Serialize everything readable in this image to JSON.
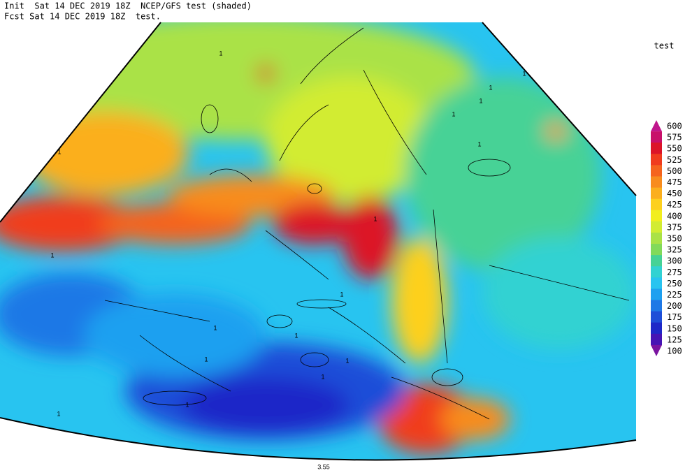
{
  "header": {
    "line1": "Init  Sat 14 DEC 2019 18Z  NCEP/GFS test (shaded)",
    "line2": "Fcst Sat 14 DEC 2019 18Z  test."
  },
  "legend": {
    "title": "test",
    "levels": [
      {
        "label": "600",
        "color": "#c0168c"
      },
      {
        "label": "575",
        "color": "#c8106a"
      },
      {
        "label": "550",
        "color": "#dc1428"
      },
      {
        "label": "525",
        "color": "#f03c1e"
      },
      {
        "label": "500",
        "color": "#f5641e"
      },
      {
        "label": "475",
        "color": "#f88c1e"
      },
      {
        "label": "450",
        "color": "#fbaf1e"
      },
      {
        "label": "425",
        "color": "#fdd01e"
      },
      {
        "label": "400",
        "color": "#f2ee1e"
      },
      {
        "label": "375",
        "color": "#d2ec32"
      },
      {
        "label": "350",
        "color": "#aae246"
      },
      {
        "label": "325",
        "color": "#82da5a"
      },
      {
        "label": "300",
        "color": "#46d296"
      },
      {
        "label": "275",
        "color": "#32d2d2"
      },
      {
        "label": "250",
        "color": "#28c4f0"
      },
      {
        "label": "225",
        "color": "#1ea0f0"
      },
      {
        "label": "200",
        "color": "#1e78e6"
      },
      {
        "label": "175",
        "color": "#1e4ed8"
      },
      {
        "label": "150",
        "color": "#1e28c8"
      },
      {
        "label": "125",
        "color": "#4614b4"
      },
      {
        "label": "100",
        "color": "#7a14a0"
      }
    ]
  },
  "contour_labels": [
    "1",
    "1",
    "1",
    "1",
    "1",
    "1",
    "1",
    "1",
    "1",
    "1",
    "1",
    "1",
    "1",
    "1",
    "1",
    "1",
    "1",
    "3.55"
  ]
}
